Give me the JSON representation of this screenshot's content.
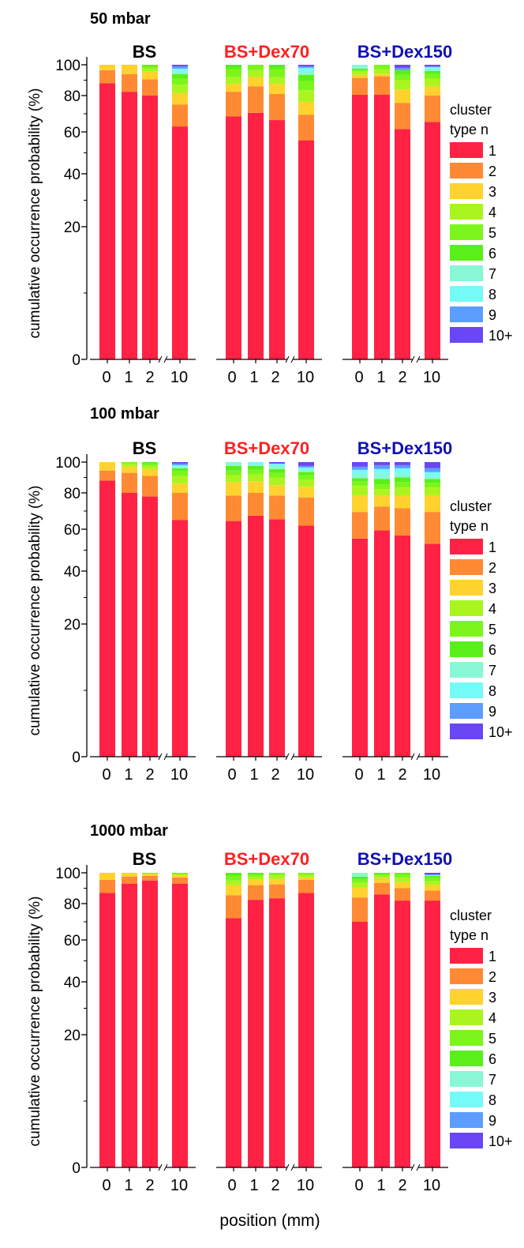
{
  "chart_data": [
    {
      "type": "bar",
      "stacked": true,
      "title": "50 mbar",
      "ylabel": "cumulative occurrence probability (%)",
      "xlabel": "",
      "yticks": [
        "0",
        "20",
        "40",
        "60",
        "80",
        "100"
      ],
      "x": [
        "0",
        "1",
        "2",
        "10"
      ],
      "legend": {
        "title_line1": "cluster",
        "title_line2": "type n",
        "placement": "right"
      },
      "series": [
        "1",
        "2",
        "3",
        "4",
        "5",
        "6",
        "7",
        "8",
        "9",
        "10+"
      ],
      "groups": [
        {
          "name": "BS",
          "bars": [
            [
              88.0,
              8.5,
              3.5,
              0,
              0,
              0,
              0,
              0,
              0,
              0
            ],
            [
              82.5,
              11.5,
              6.0,
              0,
              0,
              0,
              0,
              0,
              0,
              0
            ],
            [
              80.0,
              10.5,
              5.0,
              2.0,
              1.5,
              1.0,
              0,
              0,
              0,
              0
            ],
            [
              63.0,
              12.0,
              6.5,
              5.5,
              4.0,
              3.0,
              2.0,
              1.5,
              1.5,
              1.0
            ]
          ]
        },
        {
          "name": "BS+Dex70",
          "bars": [
            [
              68.5,
              14.0,
              5.0,
              4.5,
              5.0,
              3.0,
              0,
              0,
              0,
              0
            ],
            [
              70.5,
              15.5,
              6.0,
              4.5,
              3.5,
              0,
              0,
              0,
              0,
              0
            ],
            [
              66.5,
              14.5,
              6.5,
              4.5,
              5.0,
              3.0,
              0,
              0,
              0,
              0
            ],
            [
              56.0,
              13.5,
              7.0,
              7.0,
              6.0,
              4.0,
              2.5,
              2.0,
              1.0,
              1.0
            ]
          ]
        },
        {
          "name": "BS+Dex150",
          "bars": [
            [
              80.5,
              11.0,
              2.0,
              2.0,
              1.0,
              1.0,
              2.5,
              0,
              0,
              0
            ],
            [
              80.5,
              12.0,
              1.5,
              3.0,
              3.0,
              0,
              0,
              0,
              0,
              0
            ],
            [
              61.5,
              14.5,
              8.0,
              6.0,
              3.5,
              3.0,
              0,
              0,
              1.5,
              2.0
            ],
            [
              65.5,
              14.5,
              6.0,
              5.0,
              3.0,
              2.0,
              1.5,
              1.0,
              0.5,
              1.0
            ]
          ]
        }
      ]
    },
    {
      "type": "bar",
      "stacked": true,
      "title": "100 mbar",
      "ylabel": "cumulative occurrence probability (%)",
      "xlabel": "",
      "yticks": [
        "0",
        "20",
        "40",
        "60",
        "80",
        "100"
      ],
      "x": [
        "0",
        "1",
        "2",
        "10"
      ],
      "legend": {
        "title_line1": "cluster",
        "title_line2": "type n",
        "placement": "right"
      },
      "series": [
        "1",
        "2",
        "3",
        "4",
        "5",
        "6",
        "7",
        "8",
        "9",
        "10+"
      ],
      "groups": [
        {
          "name": "BS",
          "bars": [
            [
              88.0,
              6.5,
              5.5,
              0,
              0,
              0,
              0,
              0,
              0,
              0
            ],
            [
              80.0,
              13.0,
              4.0,
              2.0,
              1.0,
              0,
              0,
              0,
              0,
              0
            ],
            [
              78.0,
              13.0,
              4.5,
              2.0,
              1.5,
              1.0,
              0,
              0,
              0,
              0
            ],
            [
              65.0,
              15.0,
              6.0,
              5.0,
              3.0,
              2.0,
              1.0,
              1.0,
              1.0,
              1.0
            ]
          ]
        },
        {
          "name": "BS+Dex70",
          "bars": [
            [
              64.5,
              14.0,
              8.5,
              4.5,
              3.0,
              3.0,
              2.5,
              0,
              0,
              0
            ],
            [
              67.5,
              12.5,
              7.5,
              4.5,
              3.0,
              2.5,
              1.0,
              1.5,
              0,
              0
            ],
            [
              65.5,
              13.0,
              6.5,
              5.0,
              3.0,
              2.5,
              2.0,
              1.5,
              0,
              1.0
            ],
            [
              62.0,
              15.5,
              6.5,
              4.5,
              3.0,
              2.0,
              1.5,
              1.5,
              1.0,
              2.5
            ]
          ]
        },
        {
          "name": "BS+Dex150",
          "bars": [
            [
              55.5,
              14.0,
              9.0,
              6.0,
              3.0,
              2.0,
              3.0,
              2.5,
              2.0,
              3.0
            ],
            [
              59.5,
              13.0,
              6.0,
              4.0,
              3.0,
              3.5,
              4.0,
              2.5,
              2.5,
              2.0
            ],
            [
              57.0,
              14.5,
              7.0,
              5.0,
              3.5,
              3.0,
              2.5,
              3.5,
              2.0,
              2.0
            ],
            [
              53.0,
              16.5,
              9.0,
              5.0,
              3.0,
              2.5,
              2.0,
              2.5,
              2.5,
              4.0
            ]
          ]
        }
      ]
    },
    {
      "type": "bar",
      "stacked": true,
      "title": "1000 mbar",
      "ylabel": "cumulative occurrence probability (%)",
      "xlabel": "position (mm)",
      "yticks": [
        "0",
        "20",
        "40",
        "60",
        "80",
        "100"
      ],
      "x": [
        "0",
        "1",
        "2",
        "10"
      ],
      "legend": {
        "title_line1": "cluster",
        "title_line2": "type n",
        "placement": "right"
      },
      "series": [
        "1",
        "2",
        "3",
        "4",
        "5",
        "6",
        "7",
        "8",
        "9",
        "10+"
      ],
      "groups": [
        {
          "name": "BS",
          "bars": [
            [
              87.0,
              8.5,
              4.5,
              0,
              0,
              0,
              0,
              0,
              0,
              0
            ],
            [
              93.0,
              4.5,
              2.5,
              0,
              0,
              0,
              0,
              0,
              0,
              0
            ],
            [
              95.0,
              3.0,
              1.0,
              0.5,
              0.5,
              0,
              0,
              0,
              0,
              0
            ],
            [
              93.0,
              4.0,
              1.5,
              0.5,
              1.0,
              0,
              0,
              0,
              0,
              0
            ]
          ]
        },
        {
          "name": "BS+Dex70",
          "bars": [
            [
              72.0,
              13.5,
              6.5,
              3.0,
              3.0,
              2.0,
              0,
              0,
              0,
              0
            ],
            [
              82.5,
              9.5,
              3.5,
              2.0,
              1.5,
              1.0,
              0,
              0,
              0,
              0
            ],
            [
              83.5,
              9.0,
              3.5,
              2.5,
              1.5,
              0,
              0,
              0,
              0,
              0
            ],
            [
              87.0,
              8.5,
              1.5,
              1.5,
              1.5,
              0,
              0,
              0,
              0,
              0
            ]
          ]
        },
        {
          "name": "BS+Dex150",
          "bars": [
            [
              70.0,
              14.0,
              6.5,
              3.0,
              2.0,
              2.0,
              2.5,
              0,
              0,
              0
            ],
            [
              86.0,
              7.5,
              3.0,
              1.5,
              1.0,
              1.0,
              0,
              0,
              0,
              0
            ],
            [
              82.0,
              8.0,
              4.0,
              3.0,
              2.0,
              1.0,
              0,
              0,
              0,
              0
            ],
            [
              82.0,
              6.5,
              3.5,
              2.5,
              2.0,
              1.5,
              0,
              0.5,
              0.5,
              1.0
            ]
          ]
        }
      ]
    }
  ],
  "colors": {
    "series": [
      "#ff2244",
      "#ff8a33",
      "#ffd22e",
      "#aaf51f",
      "#7cf51c",
      "#5aef1a",
      "#88f7d6",
      "#73fbf8",
      "#5c9dff",
      "#6b46f5"
    ],
    "group_titles": [
      "#000000",
      "#ff1f1f",
      "#1010b4"
    ]
  }
}
